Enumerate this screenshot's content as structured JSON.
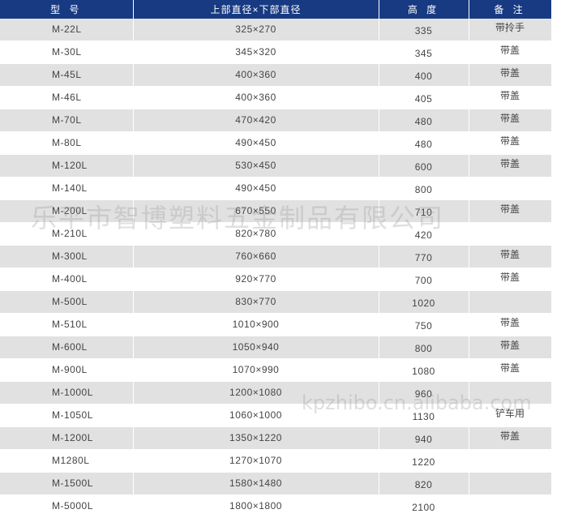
{
  "table": {
    "headers": {
      "model": "型 号",
      "dimensions": "上部直径×下部直径",
      "height": "高 度",
      "remark": "备 注"
    },
    "rows": [
      {
        "model": "M-22L",
        "dimensions": "325×270",
        "height": "335",
        "remark": "带拎手"
      },
      {
        "model": "M-30L",
        "dimensions": "345×320",
        "height": "345",
        "remark": "带盖"
      },
      {
        "model": "M-45L",
        "dimensions": "400×360",
        "height": "400",
        "remark": "带盖"
      },
      {
        "model": "M-46L",
        "dimensions": "400×360",
        "height": "405",
        "remark": "带盖"
      },
      {
        "model": "M-70L",
        "dimensions": "470×420",
        "height": "480",
        "remark": "带盖"
      },
      {
        "model": "M-80L",
        "dimensions": "490×450",
        "height": "480",
        "remark": "带盖"
      },
      {
        "model": "M-120L",
        "dimensions": "530×450",
        "height": "600",
        "remark": "带盖"
      },
      {
        "model": "M-140L",
        "dimensions": "490×450",
        "height": "800",
        "remark": ""
      },
      {
        "model": "M-200L",
        "dimensions": "670×550",
        "height": "710",
        "remark": "带盖"
      },
      {
        "model": "M-210L",
        "dimensions": "820×780",
        "height": "420",
        "remark": ""
      },
      {
        "model": "M-300L",
        "dimensions": "760×660",
        "height": "770",
        "remark": "带盖"
      },
      {
        "model": "M-400L",
        "dimensions": "920×770",
        "height": "700",
        "remark": "带盖"
      },
      {
        "model": "M-500L",
        "dimensions": "830×770",
        "height": "1020",
        "remark": ""
      },
      {
        "model": "M-510L",
        "dimensions": "1010×900",
        "height": "750",
        "remark": "带盖"
      },
      {
        "model": "M-600L",
        "dimensions": "1050×940",
        "height": "800",
        "remark": "带盖"
      },
      {
        "model": "M-900L",
        "dimensions": "1070×990",
        "height": "1080",
        "remark": "带盖"
      },
      {
        "model": "M-1000L",
        "dimensions": "1200×1080",
        "height": "960",
        "remark": ""
      },
      {
        "model": "M-1050L",
        "dimensions": "1060×1000",
        "height": "1130",
        "remark": "铲车用"
      },
      {
        "model": "M-1200L",
        "dimensions": "1350×1220",
        "height": "940",
        "remark": "带盖"
      },
      {
        "model": "M1280L",
        "dimensions": "1270×1070",
        "height": "1220",
        "remark": ""
      },
      {
        "model": "M-1500L",
        "dimensions": "1580×1480",
        "height": "820",
        "remark": ""
      },
      {
        "model": "M-5000L",
        "dimensions": "1800×1800",
        "height": "2100",
        "remark": ""
      }
    ]
  },
  "watermarks": {
    "company": "乐平市智博塑料五金制品有限公司",
    "site": "kpzhibo.cn.alibaba.com"
  },
  "colors": {
    "header_bg": "#173a82",
    "header_text": "#ffffff",
    "row_alt_bg": "#e1e1e1",
    "row_bg": "#ffffff",
    "text": "#444444"
  }
}
